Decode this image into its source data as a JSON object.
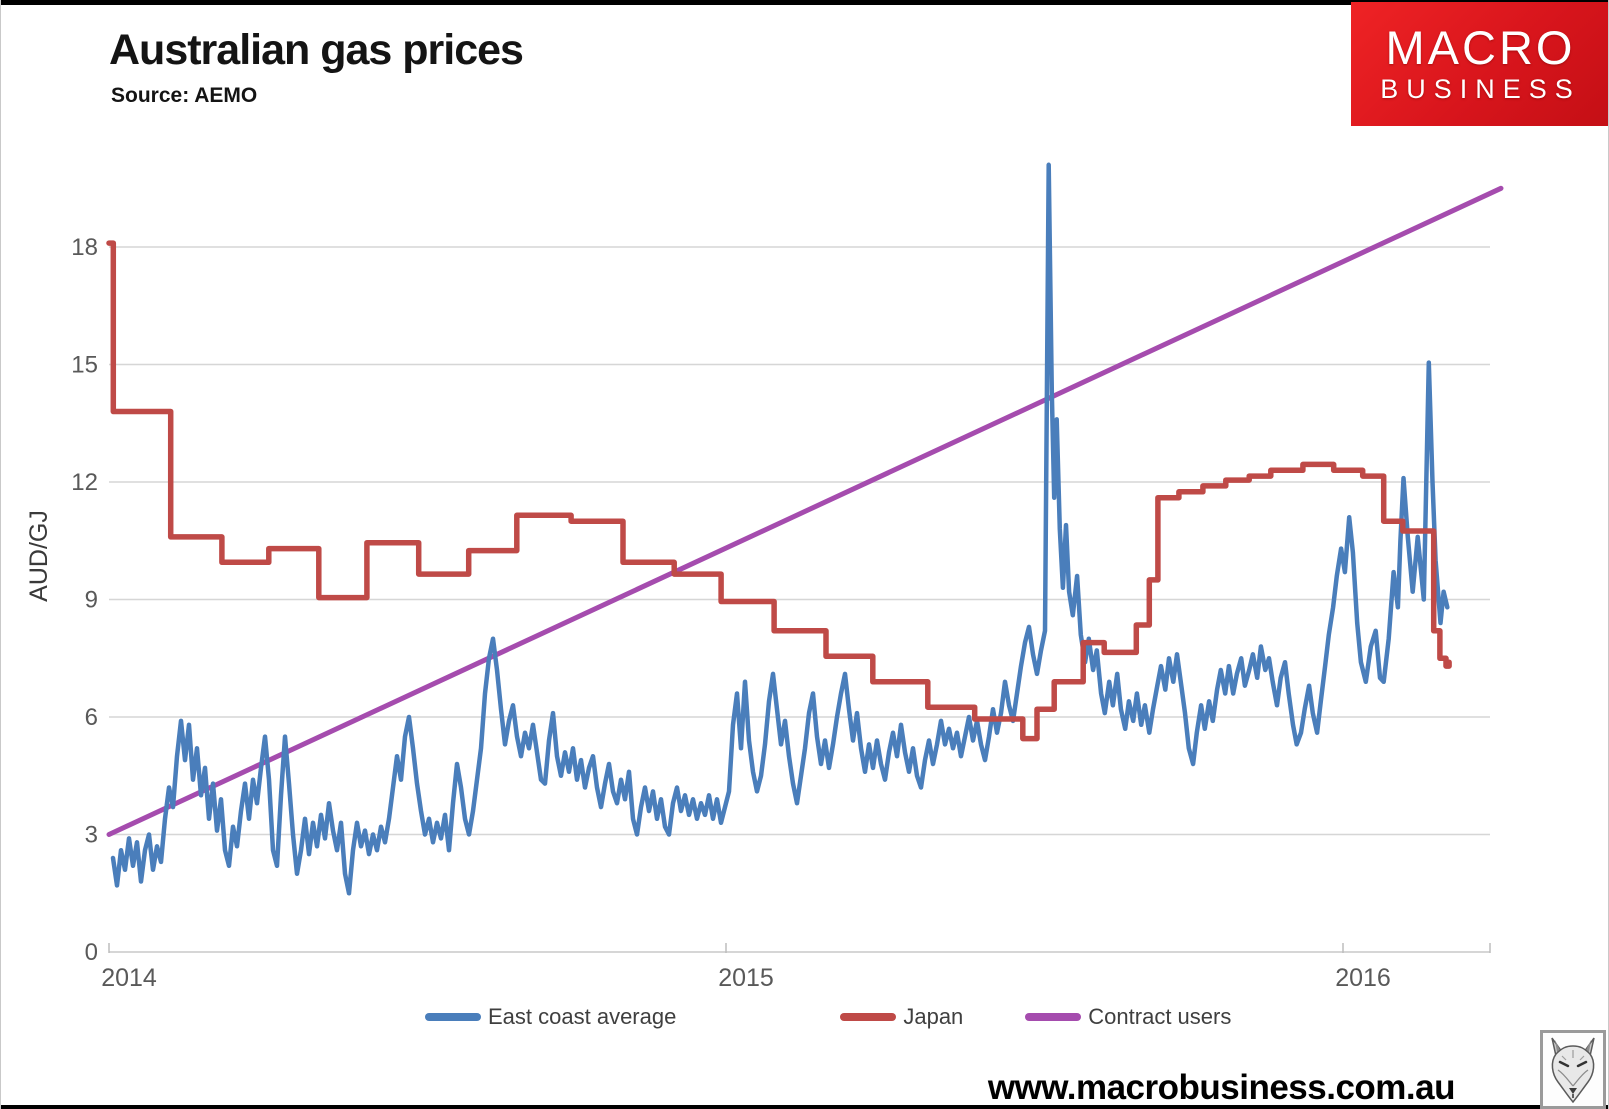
{
  "page": {
    "title": "Australian gas prices",
    "source": "Source: AEMO",
    "website": "www.macrobusiness.com.au"
  },
  "logo": {
    "line1": "MACRO",
    "line2": "BUSINESS",
    "bg_color": "#D8151C",
    "text_color": "#FFFFFF"
  },
  "colors": {
    "east_coast": "#4A7EBB",
    "japan": "#BF4A47",
    "contract": "#A54CAE",
    "grid": "#D6D6D6",
    "tick_text": "#595959"
  },
  "chart_data": {
    "type": "line",
    "title": "Australian gas prices",
    "xlabel": "",
    "ylabel": "AUD/GJ",
    "x_ticks": [
      2014,
      2015,
      2016
    ],
    "y_ticks": [
      0,
      3,
      6,
      9,
      12,
      15,
      18
    ],
    "xlim": [
      2013.995,
      2016.29
    ],
    "ylim": [
      0,
      20.5
    ],
    "grid": true,
    "legend_position": "bottom",
    "series": [
      {
        "name": "East coast average",
        "color": "#4A7EBB",
        "mode": "line",
        "x_start": 2014.0065,
        "x_step": 0.006483,
        "values": [
          2.4,
          1.7,
          2.6,
          2.1,
          2.9,
          2.2,
          2.8,
          1.8,
          2.6,
          3.0,
          2.1,
          2.7,
          2.3,
          3.4,
          4.2,
          3.7,
          5.0,
          5.9,
          4.9,
          5.8,
          4.4,
          5.2,
          4.0,
          4.7,
          3.4,
          4.3,
          3.1,
          3.9,
          2.6,
          2.2,
          3.2,
          2.7,
          3.6,
          4.3,
          3.4,
          4.4,
          3.8,
          4.7,
          5.5,
          4.4,
          2.6,
          2.2,
          4.0,
          5.5,
          4.3,
          3.0,
          2.0,
          2.6,
          3.4,
          2.5,
          3.3,
          2.7,
          3.5,
          2.9,
          3.8,
          3.1,
          2.6,
          3.3,
          2.0,
          1.5,
          2.6,
          3.3,
          2.7,
          3.1,
          2.5,
          3.0,
          2.6,
          3.2,
          2.8,
          3.4,
          4.2,
          5.0,
          4.4,
          5.5,
          6.0,
          5.2,
          4.3,
          3.6,
          3.0,
          3.4,
          2.8,
          3.3,
          2.9,
          3.5,
          2.6,
          3.8,
          4.8,
          4.2,
          3.4,
          3.0,
          3.6,
          4.4,
          5.2,
          6.6,
          7.5,
          8.0,
          7.2,
          6.2,
          5.3,
          5.9,
          6.3,
          5.5,
          5.0,
          5.6,
          5.2,
          5.8,
          5.1,
          4.4,
          4.3,
          5.4,
          6.1,
          5.0,
          4.5,
          5.1,
          4.6,
          5.2,
          4.4,
          4.9,
          4.2,
          4.7,
          5.0,
          4.2,
          3.7,
          4.3,
          4.8,
          4.1,
          3.8,
          4.4,
          3.9,
          4.6,
          3.4,
          3.0,
          3.7,
          4.2,
          3.6,
          4.1,
          3.4,
          3.9,
          3.2,
          3.0,
          3.8,
          4.2,
          3.6,
          4.0,
          3.5,
          3.9,
          3.4,
          3.8,
          3.5,
          4.0,
          3.4,
          3.9,
          3.3,
          3.7,
          4.1,
          5.8,
          6.6,
          5.2,
          6.9,
          5.4,
          4.6,
          4.1,
          4.5,
          5.3,
          6.4,
          7.1,
          6.2,
          5.3,
          5.9,
          5.0,
          4.3,
          3.8,
          4.5,
          5.2,
          6.1,
          6.6,
          5.5,
          4.8,
          5.4,
          4.7,
          5.3,
          6.0,
          6.6,
          7.1,
          6.2,
          5.4,
          6.1,
          5.2,
          4.6,
          5.3,
          4.7,
          5.4,
          4.8,
          4.4,
          5.1,
          5.6,
          5.0,
          5.8,
          5.1,
          4.6,
          5.2,
          4.5,
          4.2,
          4.9,
          5.4,
          4.8,
          5.3,
          5.9,
          5.3,
          5.7,
          5.2,
          5.6,
          5.0,
          5.5,
          6.0,
          5.4,
          5.9,
          5.3,
          4.9,
          5.5,
          6.2,
          5.6,
          6.1,
          6.9,
          6.3,
          5.9,
          6.6,
          7.3,
          7.9,
          8.3,
          7.6,
          7.1,
          7.7,
          8.2
        ],
        "extra_points": [
          [
            2015.523,
            20.1
          ],
          [
            2015.528,
            14.3
          ],
          [
            2015.532,
            11.6
          ],
          [
            2015.536,
            13.6
          ],
          [
            2015.541,
            10.8
          ],
          [
            2015.546,
            9.3
          ],
          [
            2015.551,
            10.9
          ],
          [
            2015.556,
            9.2
          ],
          [
            2015.562,
            8.6
          ],
          [
            2015.569,
            9.6
          ],
          [
            2015.575,
            8.1
          ],
          [
            2015.582,
            7.4
          ],
          [
            2015.588,
            8.0
          ],
          [
            2015.595,
            7.2
          ],
          [
            2015.601,
            7.7
          ],
          [
            2015.608,
            6.6
          ],
          [
            2015.614,
            6.1
          ],
          [
            2015.621,
            6.9
          ],
          [
            2015.627,
            6.3
          ],
          [
            2015.634,
            7.1
          ],
          [
            2015.64,
            6.2
          ],
          [
            2015.647,
            5.7
          ],
          [
            2015.653,
            6.4
          ],
          [
            2015.66,
            5.9
          ],
          [
            2015.666,
            6.6
          ],
          [
            2015.673,
            5.8
          ],
          [
            2015.679,
            6.3
          ],
          [
            2015.686,
            5.6
          ],
          [
            2015.692,
            6.2
          ],
          [
            2015.699,
            6.8
          ],
          [
            2015.705,
            7.3
          ],
          [
            2015.712,
            6.7
          ],
          [
            2015.718,
            7.5
          ],
          [
            2015.725,
            6.9
          ],
          [
            2015.731,
            7.6
          ],
          [
            2015.738,
            6.8
          ],
          [
            2015.744,
            6.1
          ],
          [
            2015.75,
            5.2
          ],
          [
            2015.757,
            4.8
          ],
          [
            2015.763,
            5.6
          ],
          [
            2015.77,
            6.3
          ],
          [
            2015.776,
            5.7
          ],
          [
            2015.783,
            6.4
          ],
          [
            2015.789,
            5.9
          ],
          [
            2015.796,
            6.7
          ],
          [
            2015.802,
            7.2
          ],
          [
            2015.809,
            6.6
          ],
          [
            2015.815,
            7.3
          ],
          [
            2015.822,
            6.6
          ],
          [
            2015.828,
            7.1
          ],
          [
            2015.835,
            7.5
          ],
          [
            2015.841,
            6.8
          ],
          [
            2015.848,
            7.2
          ],
          [
            2015.854,
            7.6
          ],
          [
            2015.861,
            7.0
          ],
          [
            2015.867,
            7.8
          ],
          [
            2015.874,
            7.2
          ],
          [
            2015.88,
            7.5
          ],
          [
            2015.886,
            6.9
          ],
          [
            2015.893,
            6.3
          ],
          [
            2015.899,
            7.0
          ],
          [
            2015.906,
            7.4
          ],
          [
            2015.912,
            6.6
          ],
          [
            2015.919,
            5.8
          ],
          [
            2015.925,
            5.3
          ],
          [
            2015.932,
            5.6
          ],
          [
            2015.938,
            6.2
          ],
          [
            2015.945,
            6.8
          ],
          [
            2015.951,
            6.1
          ],
          [
            2015.958,
            5.6
          ],
          [
            2015.964,
            6.4
          ],
          [
            2015.971,
            7.3
          ],
          [
            2015.977,
            8.1
          ],
          [
            2015.984,
            8.8
          ],
          [
            2015.99,
            9.6
          ],
          [
            2015.997,
            10.3
          ],
          [
            2016.003,
            9.7
          ],
          [
            2016.01,
            11.1
          ],
          [
            2016.016,
            10.2
          ],
          [
            2016.023,
            8.4
          ],
          [
            2016.029,
            7.4
          ],
          [
            2016.037,
            6.9
          ],
          [
            2016.045,
            7.8
          ],
          [
            2016.053,
            8.2
          ],
          [
            2016.06,
            7.0
          ],
          [
            2016.066,
            6.9
          ],
          [
            2016.074,
            8.0
          ],
          [
            2016.082,
            9.7
          ],
          [
            2016.089,
            8.8
          ],
          [
            2016.093,
            10.5
          ],
          [
            2016.098,
            12.1
          ],
          [
            2016.105,
            10.6
          ],
          [
            2016.113,
            9.2
          ],
          [
            2016.121,
            10.6
          ],
          [
            2016.131,
            9.0
          ],
          [
            2016.139,
            15.05
          ],
          [
            2016.145,
            12.0
          ],
          [
            2016.15,
            10.0
          ],
          [
            2016.158,
            8.4
          ],
          [
            2016.163,
            9.2
          ],
          [
            2016.169,
            8.8
          ]
        ]
      },
      {
        "name": "Japan",
        "color": "#BF4A47",
        "mode": "step",
        "points": [
          [
            2014.0,
            18.1
          ],
          [
            2014.007,
            13.8
          ],
          [
            2014.1,
            10.6
          ],
          [
            2014.183,
            9.95
          ],
          [
            2014.259,
            10.3
          ],
          [
            2014.34,
            9.05
          ],
          [
            2014.418,
            10.45
          ],
          [
            2014.502,
            9.65
          ],
          [
            2014.583,
            10.25
          ],
          [
            2014.661,
            11.15
          ],
          [
            2014.749,
            11.0
          ],
          [
            2014.833,
            9.95
          ],
          [
            2014.916,
            9.65
          ],
          [
            2014.992,
            8.95
          ],
          [
            2015.078,
            8.2
          ],
          [
            2015.162,
            7.55
          ],
          [
            2015.238,
            6.9
          ],
          [
            2015.327,
            6.25
          ],
          [
            2015.403,
            5.95
          ],
          [
            2015.481,
            5.45
          ],
          [
            2015.504,
            6.2
          ],
          [
            2015.532,
            6.9
          ],
          [
            2015.579,
            7.9
          ],
          [
            2015.613,
            7.65
          ],
          [
            2015.665,
            8.35
          ],
          [
            2015.686,
            9.5
          ],
          [
            2015.7,
            11.6
          ],
          [
            2015.734,
            11.75
          ],
          [
            2015.773,
            11.9
          ],
          [
            2015.81,
            12.05
          ],
          [
            2015.848,
            12.15
          ],
          [
            2015.883,
            12.3
          ],
          [
            2015.935,
            12.45
          ],
          [
            2015.985,
            12.3
          ],
          [
            2016.032,
            12.15
          ],
          [
            2016.066,
            11.0
          ],
          [
            2016.097,
            10.75
          ],
          [
            2016.147,
            8.2
          ],
          [
            2016.157,
            7.5
          ],
          [
            2016.167,
            7.3
          ],
          [
            2016.172,
            7.4
          ]
        ]
      },
      {
        "name": "Contract users",
        "color": "#A54CAE",
        "mode": "line",
        "points": [
          [
            2014.0,
            3.0
          ],
          [
            2016.256,
            19.5
          ]
        ]
      }
    ]
  }
}
